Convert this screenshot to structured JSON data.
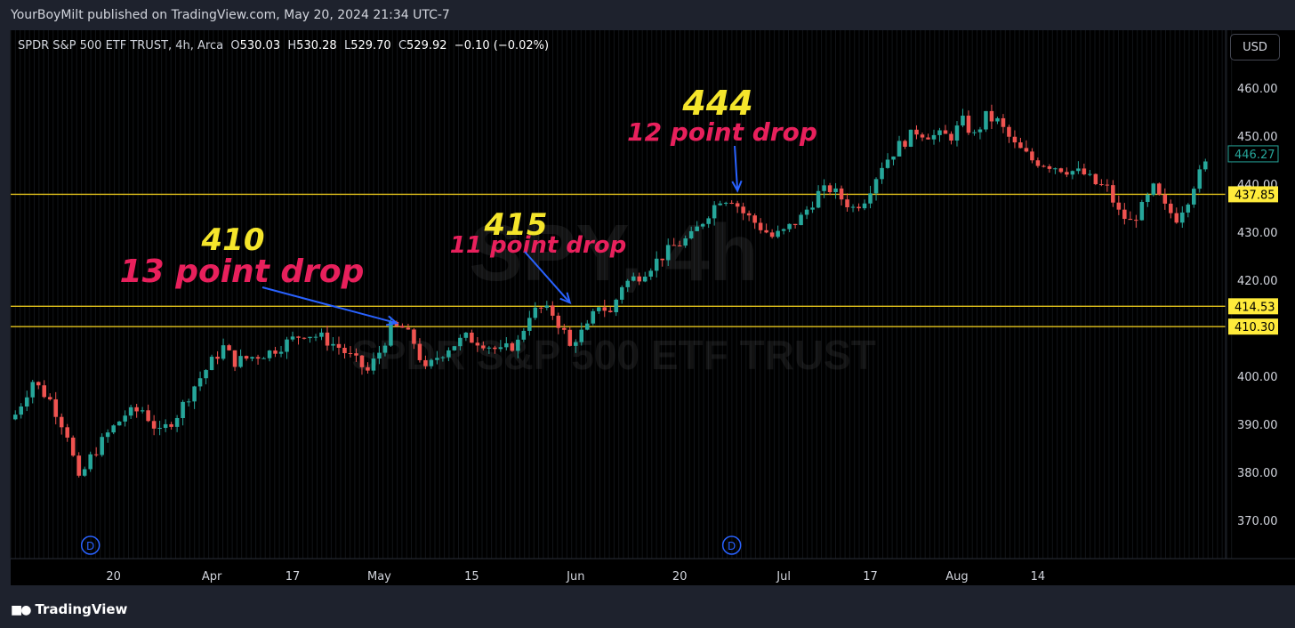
{
  "header": {
    "published_text": "YourBoyMilt published on TradingView.com, May 20, 2024 21:34 UTC-7"
  },
  "legend": {
    "symbol_text": "SPDR S&P 500 ETF TRUST, 4h, Arca",
    "open_label": "O",
    "open": "530.03",
    "high_label": "H",
    "high": "530.28",
    "low_label": "L",
    "low": "529.70",
    "close_label": "C",
    "close": "529.92",
    "change": "−0.10 (−0.02%)"
  },
  "currency_button": "USD",
  "watermark": {
    "line1": "SPY, 4h",
    "line2": "SPDR S&P 500 ETF TRUST"
  },
  "footer": {
    "brand": "TradingView"
  },
  "colors": {
    "background": "#000000",
    "frame": "#1e222d",
    "up_candle": "#26a69a",
    "down_candle": "#ef5350",
    "level_line": "#e2c21c",
    "annotation_yellow": "#f5e52b",
    "annotation_red": "#e8205c",
    "arrow": "#2962ff",
    "last_price_badge": "#26a69a",
    "level_badge": "#ffeb3b"
  },
  "chart_data": {
    "type": "candlestick",
    "interval": "4h",
    "ylim": [
      362,
      472
    ],
    "y_ticks": [
      "370.00",
      "380.00",
      "390.00",
      "400.00",
      "410.00",
      "420.00",
      "430.00",
      "440.00",
      "450.00",
      "460.00"
    ],
    "x_ticks": [
      "20",
      "Apr",
      "17",
      "May",
      "15",
      "Jun",
      "20",
      "Jul",
      "17",
      "Aug",
      "14"
    ],
    "horizontal_levels": [
      {
        "value": 437.85,
        "label": "437.85"
      },
      {
        "value": 414.53,
        "label": "414.53"
      },
      {
        "value": 410.3,
        "label": "410.30"
      }
    ],
    "last_price": {
      "value": 446.27,
      "label": "446.27"
    },
    "event_markers": [
      {
        "label": "D",
        "x_index": 13
      },
      {
        "label": "D",
        "x_index": 124
      }
    ],
    "annotations": [
      {
        "text": "410",
        "color": "yellow"
      },
      {
        "text": "13 point drop",
        "color": "red",
        "arrow_to_index": 66
      },
      {
        "text": "415",
        "color": "yellow"
      },
      {
        "text": "11 point drop",
        "color": "red",
        "arrow_to_index": 96
      },
      {
        "text": "444",
        "color": "yellow"
      },
      {
        "text": "12 point drop",
        "color": "red",
        "arrow_to_index": 125
      }
    ],
    "close_path": [
      [
        0,
        392
      ],
      [
        3,
        399
      ],
      [
        6,
        395
      ],
      [
        9,
        388
      ],
      [
        11,
        378
      ],
      [
        13,
        383
      ],
      [
        16,
        388
      ],
      [
        19,
        392
      ],
      [
        22,
        393
      ],
      [
        25,
        388
      ],
      [
        28,
        392
      ],
      [
        31,
        398
      ],
      [
        34,
        403
      ],
      [
        36,
        406
      ],
      [
        38,
        403
      ],
      [
        41,
        404
      ],
      [
        44,
        405
      ],
      [
        47,
        407
      ],
      [
        50,
        409
      ],
      [
        53,
        408
      ],
      [
        56,
        406
      ],
      [
        59,
        403
      ],
      [
        61,
        401
      ],
      [
        63,
        405
      ],
      [
        65,
        410
      ],
      [
        67,
        410
      ],
      [
        69,
        407
      ],
      [
        71,
        401
      ],
      [
        73,
        404
      ],
      [
        75,
        406
      ],
      [
        78,
        408
      ],
      [
        81,
        407
      ],
      [
        84,
        405
      ],
      [
        87,
        407
      ],
      [
        89,
        413
      ],
      [
        91,
        414
      ],
      [
        93,
        413
      ],
      [
        95,
        409
      ],
      [
        96,
        406
      ],
      [
        97,
        408
      ],
      [
        99,
        410
      ],
      [
        101,
        415
      ],
      [
        103,
        413
      ],
      [
        105,
        419
      ],
      [
        108,
        421
      ],
      [
        111,
        424
      ],
      [
        114,
        427
      ],
      [
        117,
        429
      ],
      [
        120,
        434
      ],
      [
        122,
        437
      ],
      [
        124,
        437
      ],
      [
        126,
        434
      ],
      [
        128,
        432
      ],
      [
        131,
        429
      ],
      [
        133,
        430
      ],
      [
        136,
        433
      ],
      [
        139,
        438
      ],
      [
        141,
        439
      ],
      [
        143,
        437
      ],
      [
        145,
        435
      ],
      [
        147,
        437
      ],
      [
        150,
        444
      ],
      [
        153,
        448
      ],
      [
        156,
        451
      ],
      [
        159,
        450
      ],
      [
        162,
        450
      ],
      [
        164,
        453
      ],
      [
        166,
        450
      ],
      [
        168,
        454
      ],
      [
        170,
        453
      ],
      [
        173,
        448
      ],
      [
        176,
        445
      ],
      [
        179,
        444
      ],
      [
        182,
        443
      ],
      [
        185,
        442
      ],
      [
        187,
        440
      ],
      [
        189,
        439
      ],
      [
        191,
        434
      ],
      [
        193,
        432
      ],
      [
        195,
        435
      ],
      [
        197,
        439
      ],
      [
        199,
        435
      ],
      [
        201,
        433
      ],
      [
        203,
        437
      ],
      [
        204,
        440
      ],
      [
        206,
        444
      ]
    ]
  }
}
